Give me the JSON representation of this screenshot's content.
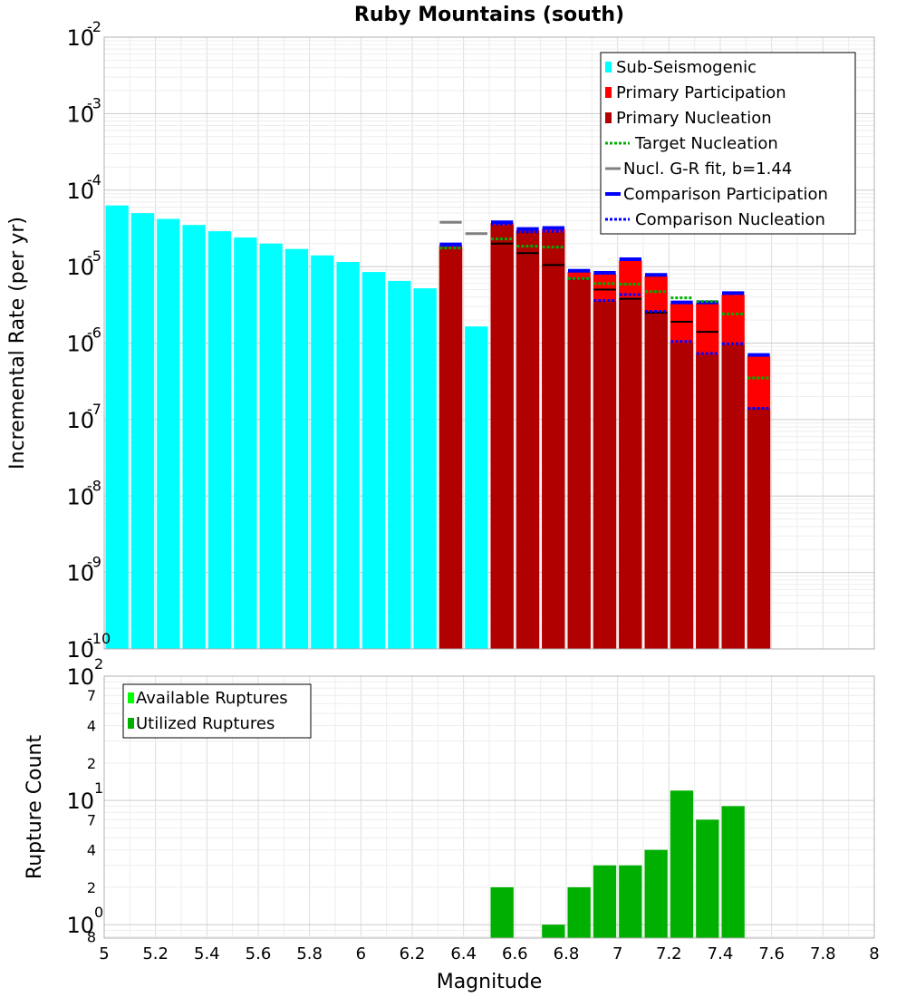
{
  "chart_data": [
    {
      "type": "bar",
      "title": "Ruby Mountains (south)",
      "xlabel": "",
      "ylabel": "Incremental Rate (per yr)",
      "yscale": "log",
      "ylim": [
        1e-10,
        0.01
      ],
      "xlim": [
        5,
        8
      ],
      "bin_width": 0.1,
      "legend_position": "top-right",
      "y_ticks": [
        {
          "base": "10",
          "exp": "-2",
          "value": 0.01
        },
        {
          "base": "10",
          "exp": "-3",
          "value": 0.001
        },
        {
          "base": "10",
          "exp": "-4",
          "value": 0.0001
        },
        {
          "base": "10",
          "exp": "-5",
          "value": 1e-05
        },
        {
          "base": "10",
          "exp": "-6",
          "value": 1e-06
        },
        {
          "base": "10",
          "exp": "-7",
          "value": 1e-07
        },
        {
          "base": "10",
          "exp": "-8",
          "value": 1e-08
        },
        {
          "base": "10",
          "exp": "-9",
          "value": 1e-09
        },
        {
          "base": "10",
          "exp": "-10",
          "value": 1e-10
        }
      ],
      "colors": {
        "sub_seismogenic": "#00ffff",
        "primary_participation": "#ff0000",
        "primary_nucleation": "#b00000",
        "target_nucleation": "#00b000",
        "gr_fit": "#808080",
        "comparison": "#0000ff",
        "nucl_marker": "#000000"
      },
      "legend": [
        {
          "label": "Sub-Seismogenic",
          "style": "bar",
          "color": "#00ffff"
        },
        {
          "label": "Primary Participation",
          "style": "bar",
          "color": "#ff0000"
        },
        {
          "label": "Primary Nucleation",
          "style": "bar",
          "color": "#b00000"
        },
        {
          "label": "Target Nucleation",
          "style": "dotted",
          "color": "#00b000"
        },
        {
          "label": "Nucl. G-R fit, b=1.44",
          "style": "solid",
          "color": "#808080"
        },
        {
          "label": "Comparison Participation",
          "style": "solid",
          "color": "#0000ff"
        },
        {
          "label": "Comparison Nucleation",
          "style": "dotted",
          "color": "#0000ff"
        }
      ],
      "series": [
        {
          "name": "Sub-Seismogenic",
          "x": [
            5.05,
            5.15,
            5.25,
            5.35,
            5.45,
            5.55,
            5.65,
            5.75,
            5.85,
            5.95,
            6.05,
            6.15,
            6.25,
            6.45
          ],
          "values": [
            6.3e-05,
            5e-05,
            4.2e-05,
            3.5e-05,
            2.9e-05,
            2.4e-05,
            2e-05,
            1.7e-05,
            1.4e-05,
            1.15e-05,
            8.5e-06,
            6.5e-06,
            5.2e-06,
            1.65e-06
          ]
        },
        {
          "name": "Primary Participation",
          "x": [
            6.35,
            6.55,
            6.65,
            6.75,
            6.85,
            6.95,
            7.05,
            7.15,
            7.25,
            7.35,
            7.45,
            7.55
          ],
          "values": [
            1.9e-05,
            3.7e-05,
            3e-05,
            3.1e-05,
            8.5e-06,
            8e-06,
            1.2e-05,
            7.5e-06,
            3.3e-06,
            3.3e-06,
            4.3e-06,
            6.8e-07
          ]
        },
        {
          "name": "Primary Nucleation",
          "x": [
            6.35,
            6.55,
            6.65,
            6.75,
            6.85,
            6.95,
            7.05,
            7.15,
            7.25,
            7.35,
            7.45,
            7.55
          ],
          "values": [
            1.8e-05,
            3.5e-05,
            2.9e-05,
            2.8e-05,
            7e-06,
            3.5e-06,
            3.8e-06,
            2.6e-06,
            1e-06,
            7e-07,
            9.5e-07,
            1.4e-07
          ]
        },
        {
          "name": "Target Nucleation",
          "x": [
            6.35,
            6.55,
            6.65,
            6.75,
            6.85,
            6.95,
            7.05,
            7.15,
            7.25,
            7.35,
            7.45,
            7.55
          ],
          "values": [
            1.75e-05,
            2.3e-05,
            1.85e-05,
            1.8e-05,
            7e-06,
            6e-06,
            5.9e-06,
            4.7e-06,
            3.9e-06,
            3.5e-06,
            2.4e-06,
            3.5e-07
          ]
        },
        {
          "name": "Nucl. G-R fit, b=1.44",
          "x": [
            6.35,
            6.45
          ],
          "values": [
            3.8e-05,
            2.7e-05
          ]
        },
        {
          "name": "Comparison Participation",
          "x": [
            6.35,
            6.55,
            6.65,
            6.75,
            6.85,
            6.95,
            7.05,
            7.15,
            7.25,
            7.35,
            7.45,
            7.55
          ],
          "values": [
            1.95e-05,
            3.8e-05,
            3.1e-05,
            3.2e-05,
            8.8e-06,
            8.3e-06,
            1.25e-05,
            7.8e-06,
            3.4e-06,
            3.4e-06,
            4.5e-06,
            7e-07
          ]
        },
        {
          "name": "Comparison Nucleation",
          "x": [
            6.35,
            6.55,
            6.65,
            6.75,
            6.85,
            6.95,
            7.05,
            7.15,
            7.25,
            7.35,
            7.45,
            7.55
          ],
          "values": [
            1.85e-05,
            3.6e-05,
            2.85e-05,
            2.9e-05,
            7e-06,
            3.6e-06,
            4.3e-06,
            2.6e-06,
            1.05e-06,
            7.3e-07,
            9.8e-07,
            1.4e-07
          ]
        },
        {
          "name": "Nucleation marker",
          "x": [
            6.55,
            6.65,
            6.75,
            6.95,
            7.05,
            7.15,
            7.25,
            7.35
          ],
          "values": [
            2e-05,
            1.5e-05,
            1.05e-05,
            5e-06,
            3.8e-06,
            2.5e-06,
            1.9e-06,
            1.4e-06
          ]
        }
      ]
    },
    {
      "type": "bar",
      "title": "",
      "xlabel": "Magnitude",
      "ylabel": "Rupture Count",
      "yscale": "log",
      "ylim": [
        0.78,
        100
      ],
      "xlim": [
        5,
        8
      ],
      "bin_width": 0.1,
      "legend_position": "top-left",
      "x_ticks": [
        "5",
        "5.2",
        "5.4",
        "5.6",
        "5.8",
        "6",
        "6.2",
        "6.4",
        "6.6",
        "6.8",
        "7",
        "7.2",
        "7.4",
        "7.6",
        "7.8",
        "8"
      ],
      "y_decades": [
        {
          "base": "10",
          "exp": "2",
          "value": 100
        },
        {
          "base": "10",
          "exp": "1",
          "value": 10
        },
        {
          "base": "10",
          "exp": "0",
          "value": 1
        }
      ],
      "y_minor_ticks": [
        {
          "label": "7",
          "value": 70
        },
        {
          "label": "4",
          "value": 40
        },
        {
          "label": "2",
          "value": 20
        },
        {
          "label": "7",
          "value": 7
        },
        {
          "label": "4",
          "value": 4
        },
        {
          "label": "2",
          "value": 2
        },
        {
          "label": "8",
          "value": 0.8
        }
      ],
      "colors": {
        "available": "#00ff00",
        "utilized": "#00b000"
      },
      "legend": [
        {
          "label": "Available Ruptures",
          "color": "#00ff00"
        },
        {
          "label": "Utilized Ruptures",
          "color": "#00b000"
        }
      ],
      "series": [
        {
          "name": "Utilized Ruptures",
          "x": [
            6.55,
            6.75,
            6.85,
            6.95,
            7.05,
            7.15,
            7.25,
            7.35,
            7.45
          ],
          "values": [
            2,
            1,
            2,
            3,
            3,
            4,
            12,
            7,
            9
          ]
        }
      ]
    }
  ]
}
